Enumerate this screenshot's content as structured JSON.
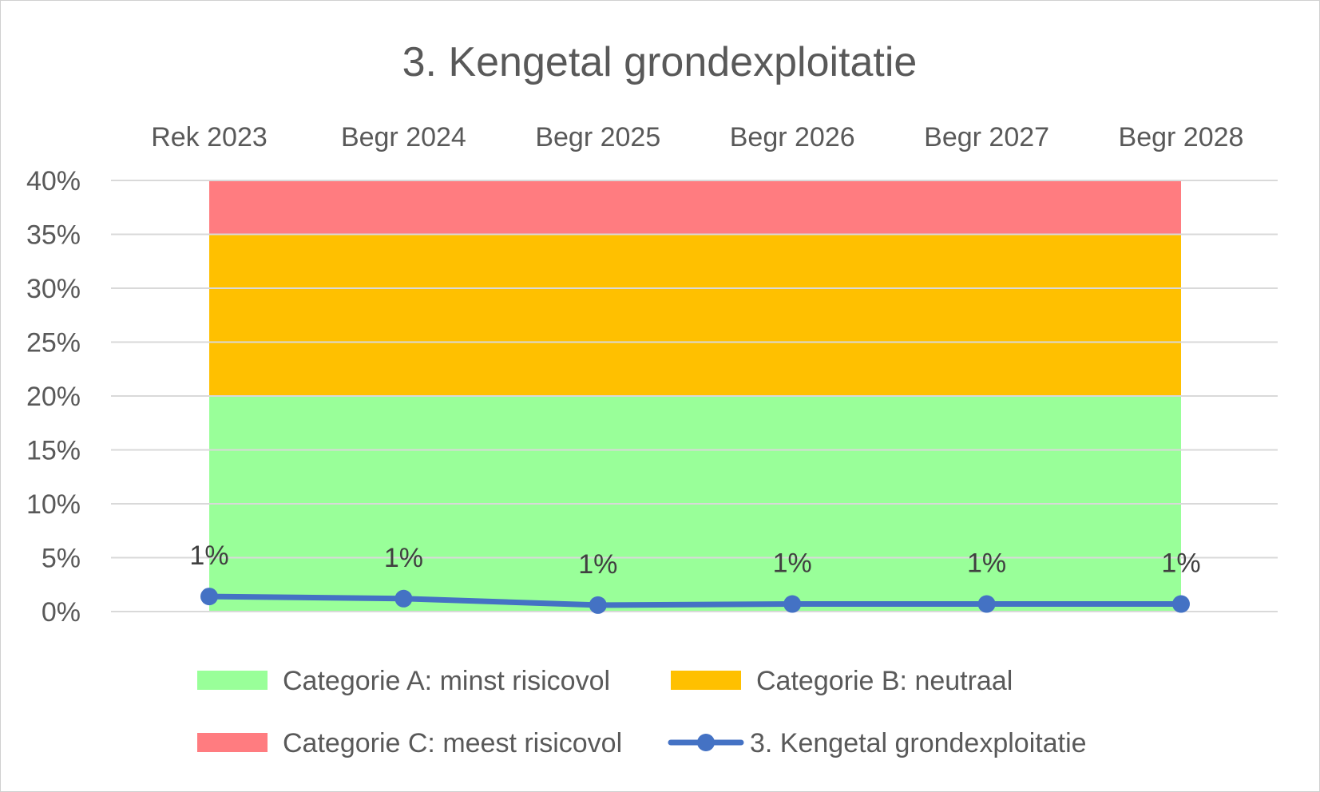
{
  "chart_data": {
    "type": "line",
    "title": "3. Kengetal grondexploitatie",
    "categories": [
      "Rek 2023",
      "Begr 2024",
      "Begr 2025",
      "Begr 2026",
      "Begr 2027",
      "Begr 2028"
    ],
    "ylim": [
      0,
      40
    ],
    "y_ticks": [
      "0%",
      "5%",
      "10%",
      "15%",
      "20%",
      "25%",
      "30%",
      "35%",
      "40%"
    ],
    "grid": true,
    "x_axis_position": "top",
    "legend_position": "bottom",
    "bands": [
      {
        "name": "Categorie A: minst risicovol",
        "from": 0,
        "to": 20,
        "color": "#99FF99"
      },
      {
        "name": "Categorie B: neutraal",
        "from": 20,
        "to": 35,
        "color": "#FFC000"
      },
      {
        "name": "Categorie C: meest risicovol",
        "from": 35,
        "to": 40,
        "color": "#FF7C80"
      }
    ],
    "series": [
      {
        "name": "3. Kengetal grondexploitatie",
        "color": "#4472C4",
        "values": [
          1.4,
          1.2,
          0.6,
          0.7,
          0.7,
          0.7
        ],
        "data_labels": [
          "1%",
          "1%",
          "1%",
          "1%",
          "1%",
          "1%"
        ]
      }
    ]
  }
}
